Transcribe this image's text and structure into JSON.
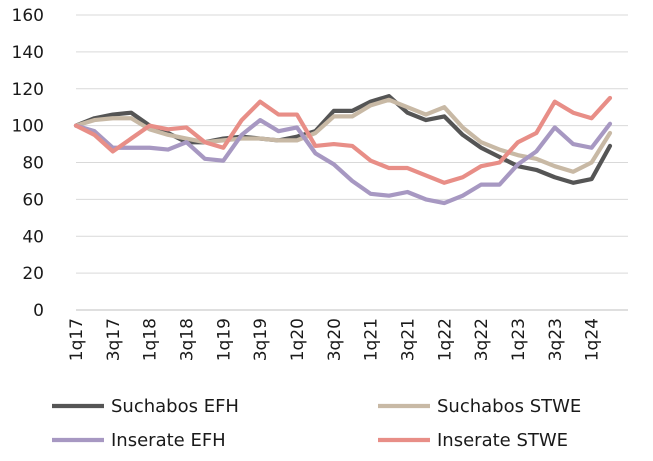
{
  "chart_data": {
    "type": "line",
    "title": "",
    "xlabel": "",
    "ylabel": "",
    "ylim": [
      0,
      160
    ],
    "yticks": [
      0,
      20,
      40,
      60,
      80,
      100,
      120,
      140,
      160
    ],
    "grid": true,
    "legend_position": "bottom",
    "x": [
      "1q17",
      "2q17",
      "3q17",
      "4q17",
      "1q18",
      "2q18",
      "3q18",
      "4q18",
      "1q19",
      "2q19",
      "3q19",
      "4q19",
      "1q20",
      "2q20",
      "3q20",
      "4q20",
      "1q21",
      "2q21",
      "3q21",
      "4q21",
      "1q22",
      "2q22",
      "3q22",
      "4q22",
      "1q23",
      "2q23",
      "3q23",
      "4q23",
      "1q24",
      "2q24"
    ],
    "x_tick_labels": [
      "1q17",
      "3q17",
      "1q18",
      "3q18",
      "1q19",
      "3q19",
      "1q20",
      "3q20",
      "1q21",
      "3q21",
      "1q22",
      "3q22",
      "1q23",
      "3q23",
      "1q24"
    ],
    "series": [
      {
        "name": "Suchabos EFH",
        "color": "#555555",
        "values": [
          100,
          104,
          106,
          107,
          100,
          96,
          91,
          91,
          93,
          94,
          93,
          92,
          94,
          97,
          108,
          108,
          113,
          116,
          107,
          103,
          105,
          95,
          88,
          83,
          78,
          76,
          72,
          69,
          71,
          89
        ]
      },
      {
        "name": "Suchabos STWE",
        "color": "#c8b9a5",
        "values": [
          100,
          103,
          104,
          104,
          98,
          95,
          93,
          91,
          92,
          93,
          93,
          92,
          92,
          96,
          105,
          105,
          111,
          114,
          110,
          106,
          110,
          99,
          91,
          87,
          84,
          82,
          78,
          75,
          80,
          96
        ]
      },
      {
        "name": "Inserate EFH",
        "color": "#a798c2",
        "values": [
          100,
          97,
          88,
          88,
          88,
          87,
          91,
          82,
          81,
          95,
          103,
          97,
          99,
          85,
          79,
          70,
          63,
          62,
          64,
          60,
          58,
          62,
          68,
          68,
          79,
          86,
          99,
          90,
          88,
          101
        ]
      },
      {
        "name": "Inserate STWE",
        "color": "#e88e87",
        "values": [
          100,
          95,
          86,
          93,
          100,
          98,
          99,
          91,
          88,
          103,
          113,
          106,
          106,
          89,
          90,
          89,
          81,
          77,
          77,
          73,
          69,
          72,
          78,
          80,
          91,
          96,
          113,
          107,
          104,
          115
        ]
      }
    ]
  }
}
